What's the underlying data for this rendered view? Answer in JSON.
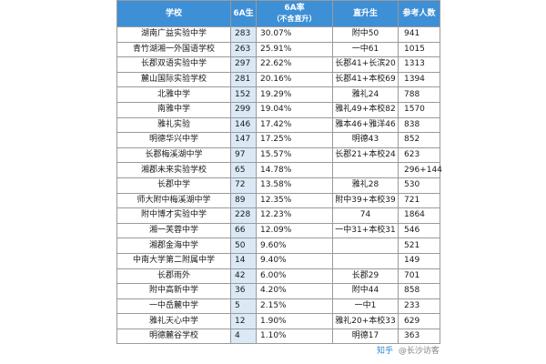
{
  "table": {
    "headers": {
      "school": "学校",
      "students": "6A生",
      "rate_main": "6A率",
      "rate_sub": "（不含直升）",
      "direct": "直升生",
      "count": "参考人数"
    },
    "rows": [
      {
        "school": "湖南广益实验中学",
        "students": "283",
        "rate": "30.07%",
        "direct": "附中50",
        "count": "941"
      },
      {
        "school": "青竹湖湘一外国语学校",
        "students": "263",
        "rate": "25.91%",
        "direct": "一中61",
        "count": "1015"
      },
      {
        "school": "长郡双语实验中学",
        "students": "297",
        "rate": "22.62%",
        "direct": "长郡41+长滨20",
        "count": "1313"
      },
      {
        "school": "麓山国际实验学校",
        "students": "281",
        "rate": "20.16%",
        "direct": "长郡41+本校69",
        "count": "1394"
      },
      {
        "school": "北雅中学",
        "students": "152",
        "rate": "19.29%",
        "direct": "雅礼24",
        "count": "788"
      },
      {
        "school": "南雅中学",
        "students": "299",
        "rate": "19.04%",
        "direct": "雅礼49+本校82",
        "count": "1570"
      },
      {
        "school": "雅礼实验",
        "students": "146",
        "rate": "17.42%",
        "direct": "雅本46+雅洋46",
        "count": "838"
      },
      {
        "school": "明德华兴中学",
        "students": "147",
        "rate": "17.25%",
        "direct": "明德43",
        "count": "852"
      },
      {
        "school": "长郡梅溪湖中学",
        "students": "97",
        "rate": "15.57%",
        "direct": "长郡21+本校24",
        "count": "623"
      },
      {
        "school": "湘郡未来实验学校",
        "students": "65",
        "rate": "14.78%",
        "direct": "",
        "count": "296+144"
      },
      {
        "school": "长郡中学",
        "students": "72",
        "rate": "13.58%",
        "direct": "雅礼28",
        "count": "530"
      },
      {
        "school": "师大附中梅溪湖中学",
        "students": "89",
        "rate": "12.35%",
        "direct": "附中39+本校39",
        "count": "721"
      },
      {
        "school": "附中博才实验中学",
        "students": "228",
        "rate": "12.23%",
        "direct": "74",
        "count": "1864"
      },
      {
        "school": "湘一芙蓉中学",
        "students": "66",
        "rate": "12.09%",
        "direct": "一中31+本校31",
        "count": "546"
      },
      {
        "school": "湘郡金海中学",
        "students": "50",
        "rate": "9.60%",
        "direct": "",
        "count": "521"
      },
      {
        "school": "中南大学第二附属中学",
        "students": "14",
        "rate": "9.40%",
        "direct": "",
        "count": "149"
      },
      {
        "school": "长郡雨外",
        "students": "42",
        "rate": "6.00%",
        "direct": "长郡29",
        "count": "701"
      },
      {
        "school": "附中高新中学",
        "students": "36",
        "rate": "4.20%",
        "direct": "附中44",
        "count": "858"
      },
      {
        "school": "一中岳麓中学",
        "students": "5",
        "rate": "2.15%",
        "direct": "一中1",
        "count": "233"
      },
      {
        "school": "雅礼天心中学",
        "students": "12",
        "rate": "1.90%",
        "direct": "雅礼20+本校33",
        "count": "629"
      },
      {
        "school": "明德麓谷学校",
        "students": "4",
        "rate": "1.10%",
        "direct": "明德17",
        "count": "363"
      }
    ]
  },
  "watermark": {
    "logo": "知乎",
    "text": "@长沙访客"
  }
}
